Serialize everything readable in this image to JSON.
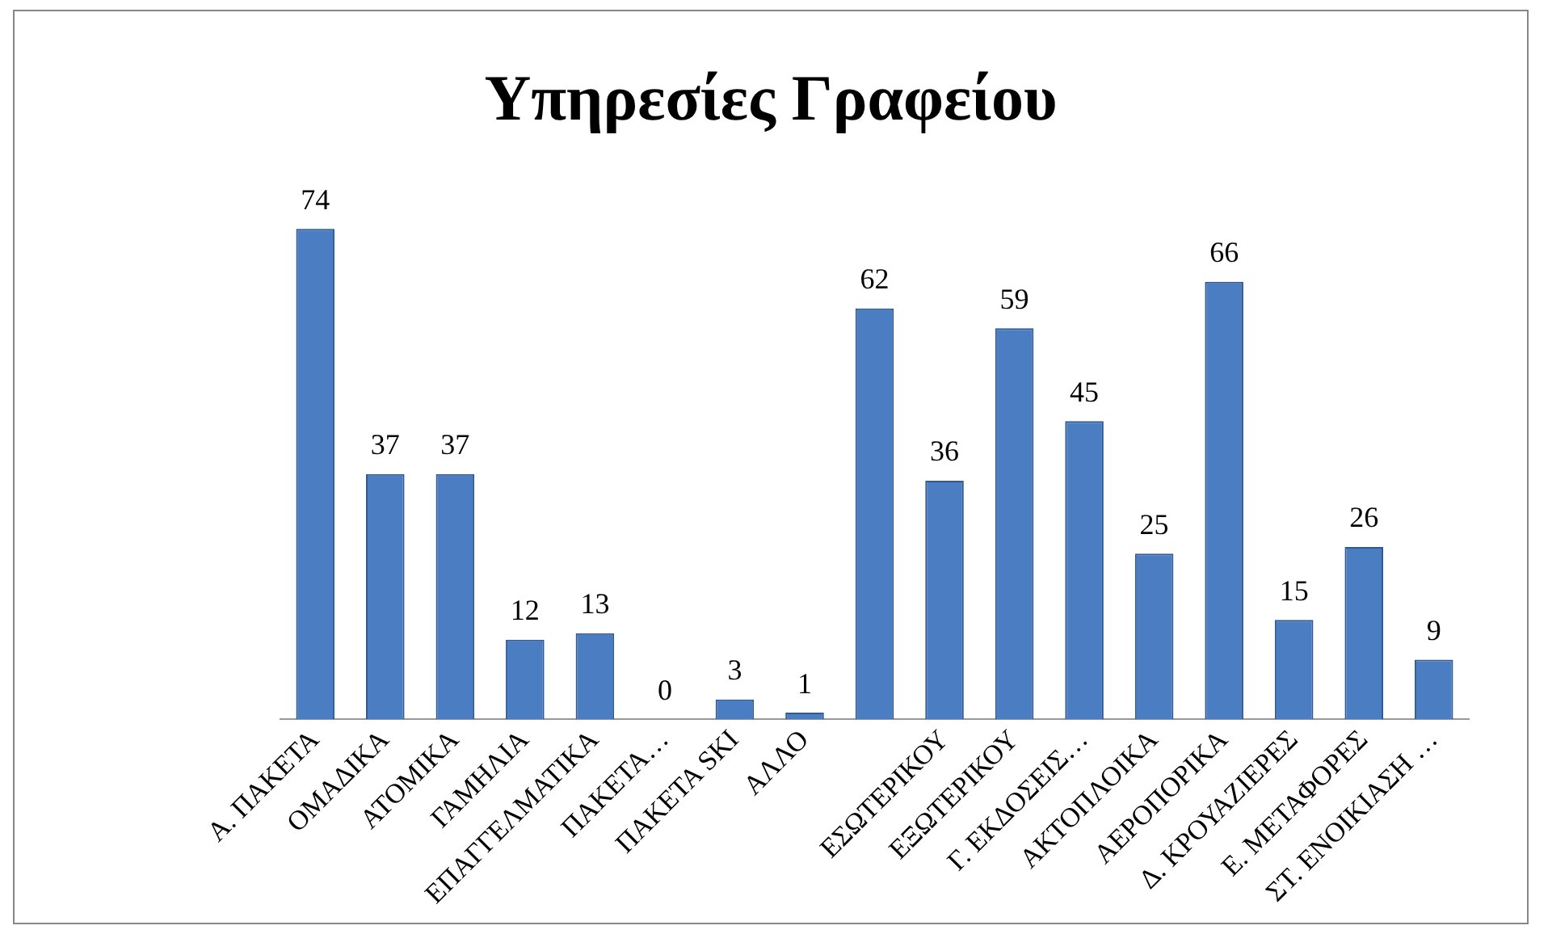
{
  "chart_data": {
    "type": "bar",
    "title": "Υπηρεσίες Γραφείου",
    "categories": [
      "Α. ΠΑΚΕΤΑ",
      "ΟΜΑΔΙΚΑ",
      "ΑΤΟΜΙΚΑ",
      "ΓΑΜΗΛΙΑ",
      "ΕΠΑΓΓΕΛΜΑΤΙΚΑ",
      "ΠΑΚΕΤΑ…",
      "ΠΑΚΕΤΑ SKI",
      "ΑΛΛΟ",
      null,
      "ΕΣΩΤΕΡΙΚΟΥ",
      "ΕΞΩΤΕΡΙΚΟΥ",
      "Γ. ΕΚΔΟΣΕΙΣ…",
      "ΑΚΤΟΠΛΟΙΚΑ",
      "ΑΕΡΟΠΟΡΙΚΑ",
      "Δ. ΚΡΟΥΑΖΙΕΡΕΣ",
      "Ε. ΜΕΤΑΦΟΡΕΣ",
      "ΣΤ. ΕΝΟΙΚΙΑΣΗ …"
    ],
    "values": [
      74,
      37,
      37,
      12,
      13,
      0,
      3,
      1,
      62,
      36,
      59,
      45,
      25,
      66,
      15,
      26,
      9
    ],
    "color": "#4a7dc1",
    "data_labels": true,
    "grid": false,
    "legend": false,
    "tick_labels": "x"
  }
}
